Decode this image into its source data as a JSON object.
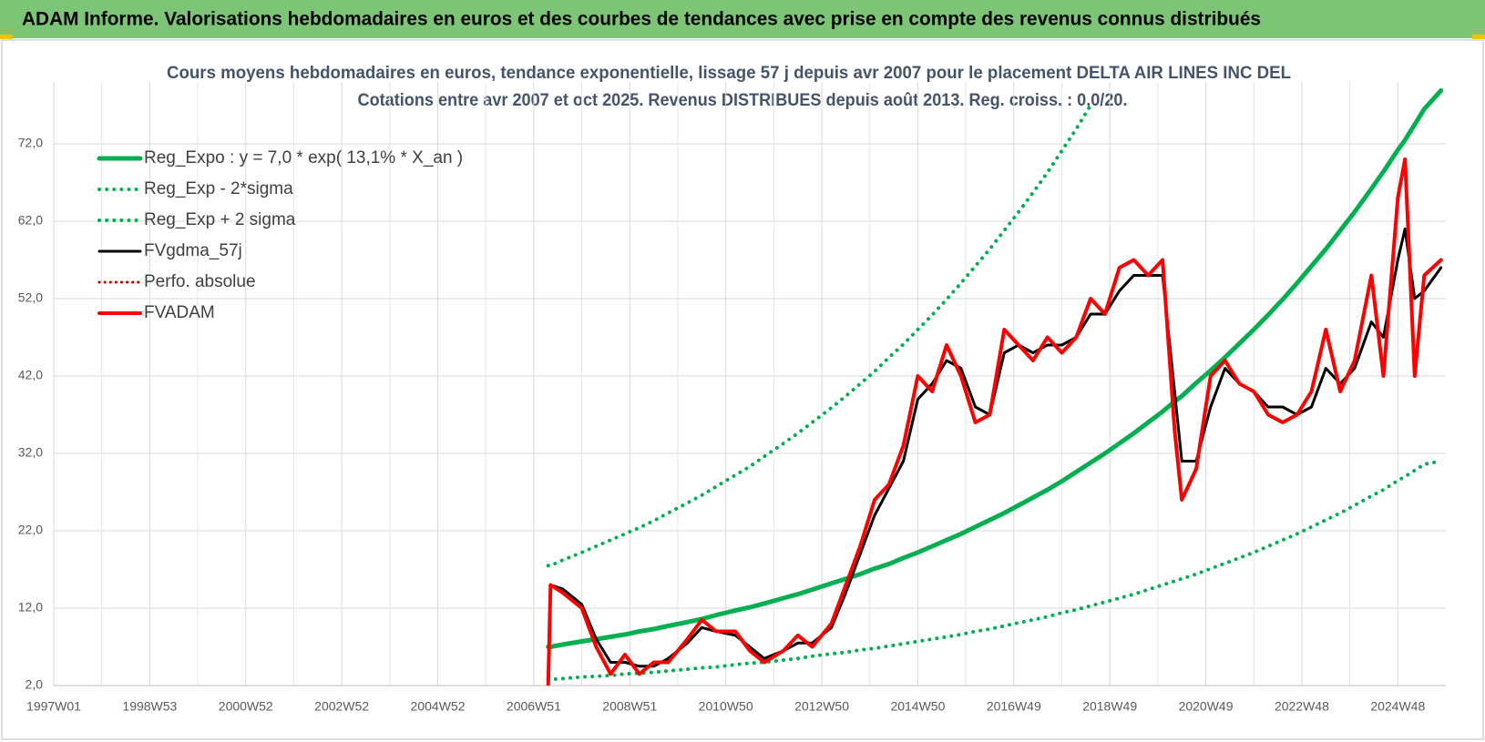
{
  "banner": "ADAM Informe. Valorisations hebdomadaires en euros et des courbes de tendances avec prise en compte des revenus connus distribués",
  "chart_data": {
    "type": "line",
    "title": [
      "Cours moyens hebdomadaires en euros, tendance exponentielle, lissage 57 j depuis avr 2007 pour le placement DELTA AIR LINES INC DEL",
      "Cotations entre avr 2007 et oct 2025.  Revenus DISTRIBUES depuis août 2013.  Reg. croiss. : 0,0/20."
    ],
    "x": [
      2007.3,
      2007.35,
      2007.6,
      2008.0,
      2008.3,
      2008.6,
      2008.9,
      2009.2,
      2009.5,
      2009.8,
      2010.2,
      2010.5,
      2010.8,
      2011.2,
      2011.5,
      2011.8,
      2012.2,
      2012.5,
      2012.8,
      2013.2,
      2013.5,
      2013.8,
      2014.1,
      2014.4,
      2014.7,
      2015.0,
      2015.3,
      2015.6,
      2015.9,
      2016.2,
      2016.5,
      2016.8,
      2017.1,
      2017.4,
      2017.7,
      2018.0,
      2018.3,
      2018.6,
      2018.9,
      2019.2,
      2019.5,
      2019.8,
      2020.1,
      2020.35,
      2020.5,
      2020.8,
      2021.1,
      2021.4,
      2021.7,
      2022.0,
      2022.3,
      2022.6,
      2022.9,
      2023.2,
      2023.5,
      2023.8,
      2024.1,
      2024.45,
      2024.7,
      2025.0,
      2025.15,
      2025.35,
      2025.55,
      2025.9
    ],
    "series": [
      {
        "name": "Reg_Expo : y = 7,0 * exp( 13,1% *  X_an )",
        "color": "#00b050",
        "style": "solid",
        "width": 5,
        "values": [
          7.0,
          7.0,
          7.3,
          7.7,
          8.0,
          8.3,
          8.6,
          9.0,
          9.3,
          9.7,
          10.2,
          10.6,
          11.1,
          11.7,
          12.1,
          12.6,
          13.3,
          13.8,
          14.4,
          15.2,
          15.8,
          16.4,
          17.1,
          17.7,
          18.5,
          19.2,
          20.0,
          20.8,
          21.6,
          22.5,
          23.4,
          24.3,
          25.3,
          26.3,
          27.3,
          28.4,
          29.6,
          30.8,
          32.0,
          33.3,
          34.6,
          36.0,
          37.4,
          38.7,
          39.4,
          41.1,
          42.7,
          44.4,
          46.2,
          48.0,
          49.9,
          51.9,
          54.0,
          56.2,
          58.4,
          60.8,
          63.2,
          66.2,
          68.4,
          71.2,
          72.5,
          74.5,
          76.5,
          78.9
        ]
      },
      {
        "name": "Reg_Exp - 2*sigma",
        "color": "#00b050",
        "style": "dotted",
        "width": 4,
        "values": [
          2.8,
          2.8,
          2.9,
          3.1,
          3.2,
          3.3,
          3.5,
          3.6,
          3.7,
          3.9,
          4.1,
          4.3,
          4.4,
          4.7,
          4.9,
          5.0,
          5.3,
          5.5,
          5.8,
          6.1,
          6.3,
          6.6,
          6.8,
          7.1,
          7.4,
          7.7,
          8.0,
          8.3,
          8.6,
          9.0,
          9.3,
          9.7,
          10.1,
          10.5,
          10.9,
          11.4,
          11.8,
          12.3,
          12.8,
          13.3,
          13.8,
          14.4,
          15.0,
          15.5,
          15.8,
          16.4,
          17.1,
          17.8,
          18.5,
          19.2,
          20.0,
          20.8,
          21.6,
          22.5,
          23.4,
          24.3,
          25.3,
          26.5,
          27.3,
          28.5,
          29.0,
          29.8,
          30.6,
          31.0
        ]
      },
      {
        "name": "Reg_Exp + 2 sigma",
        "color": "#00b050",
        "style": "dotted",
        "width": 4,
        "values": [
          17.5,
          17.5,
          18.2,
          19.2,
          20.0,
          20.8,
          21.6,
          22.4,
          23.3,
          24.3,
          25.6,
          26.6,
          27.7,
          29.2,
          30.3,
          31.6,
          33.3,
          34.6,
          36.0,
          37.9,
          39.4,
          41.0,
          42.6,
          44.4,
          46.1,
          48.0,
          49.9,
          51.9,
          54.0,
          56.2,
          58.4,
          60.8,
          63.2,
          65.7,
          68.3,
          71.1,
          73.9,
          77.0,
          null,
          null,
          null,
          null,
          null,
          null,
          null,
          null,
          null,
          null,
          null,
          null,
          null,
          null,
          null,
          null,
          null,
          null,
          null,
          null,
          null,
          null,
          null,
          null,
          null,
          null
        ]
      },
      {
        "name": "FVgdma_57j",
        "color": "#000000",
        "style": "solid",
        "width": 3,
        "values": [
          null,
          15,
          14.5,
          12.5,
          8,
          5,
          5,
          4.5,
          4.5,
          5.5,
          7.5,
          9.5,
          9,
          8.5,
          7,
          5.5,
          6.5,
          7.5,
          7.5,
          9.5,
          14,
          19,
          24,
          27.5,
          31,
          39,
          41,
          44,
          43,
          38,
          37,
          45,
          46,
          45,
          46,
          46,
          47,
          50,
          50,
          53,
          55,
          55,
          55,
          40,
          31,
          31,
          38,
          43,
          41,
          40,
          38,
          38,
          37,
          38,
          43,
          41,
          43,
          49,
          47,
          57,
          61,
          52,
          53,
          56
        ]
      },
      {
        "name": "Perfo. absolue",
        "color": "#c00000",
        "style": "dotted",
        "width": 3,
        "values": [
          null,
          null,
          null,
          null,
          null,
          null,
          null,
          null,
          null,
          null,
          null,
          null,
          null,
          null,
          null,
          null,
          null,
          null,
          null,
          null,
          null,
          null,
          null,
          null,
          null,
          null,
          null,
          null,
          null,
          null,
          null,
          null,
          null,
          null,
          null,
          null,
          null,
          null,
          null,
          null,
          null,
          null,
          null,
          null,
          null,
          null,
          null,
          null,
          null,
          null,
          null,
          null,
          null,
          null,
          null,
          null,
          null,
          null,
          null,
          null,
          null,
          null,
          null,
          null
        ]
      },
      {
        "name": "FVADAM",
        "color": "#ff0000",
        "style": "solid",
        "width": 4,
        "values": [
          2,
          15,
          14,
          12,
          7,
          3.5,
          6,
          3.5,
          5,
          5,
          8,
          10.5,
          9,
          9,
          6.5,
          5,
          6.5,
          8.5,
          7,
          10,
          15,
          20,
          26,
          28,
          33,
          42,
          40,
          46,
          42,
          36,
          37,
          48,
          46,
          44,
          47,
          45,
          47,
          52,
          50,
          56,
          57,
          55,
          57,
          35,
          26,
          30,
          42,
          44,
          41,
          40,
          37,
          36,
          37,
          40,
          48,
          40,
          44,
          55,
          42,
          65,
          70,
          42,
          55,
          57
        ]
      }
    ],
    "xlim": [
      1997,
      2026
    ],
    "xticks": [
      {
        "value": 1997,
        "label": "1997W01"
      },
      {
        "value": 1999,
        "label": "1998W53"
      },
      {
        "value": 2001,
        "label": "2000W52"
      },
      {
        "value": 2003,
        "label": "2002W52"
      },
      {
        "value": 2005,
        "label": "2004W52"
      },
      {
        "value": 2007,
        "label": "2006W51"
      },
      {
        "value": 2009,
        "label": "2008W51"
      },
      {
        "value": 2011,
        "label": "2010W50"
      },
      {
        "value": 2013,
        "label": "2012W50"
      },
      {
        "value": 2015,
        "label": "2014W50"
      },
      {
        "value": 2017,
        "label": "2016W49"
      },
      {
        "value": 2019,
        "label": "2018W49"
      },
      {
        "value": 2021,
        "label": "2020W49"
      },
      {
        "value": 2023,
        "label": "2022W48"
      },
      {
        "value": 2025,
        "label": "2024W48"
      }
    ],
    "ylim": [
      2,
      80
    ],
    "yticks": [
      {
        "value": 2,
        "label": "2,0"
      },
      {
        "value": 12,
        "label": "12,0"
      },
      {
        "value": 22,
        "label": "22,0"
      },
      {
        "value": 32,
        "label": "32,0"
      },
      {
        "value": 42,
        "label": "42,0"
      },
      {
        "value": 52,
        "label": "52,0"
      },
      {
        "value": 62,
        "label": "62,0"
      },
      {
        "value": 72,
        "label": "72,0"
      }
    ],
    "grid": true,
    "legend": "upper left"
  }
}
